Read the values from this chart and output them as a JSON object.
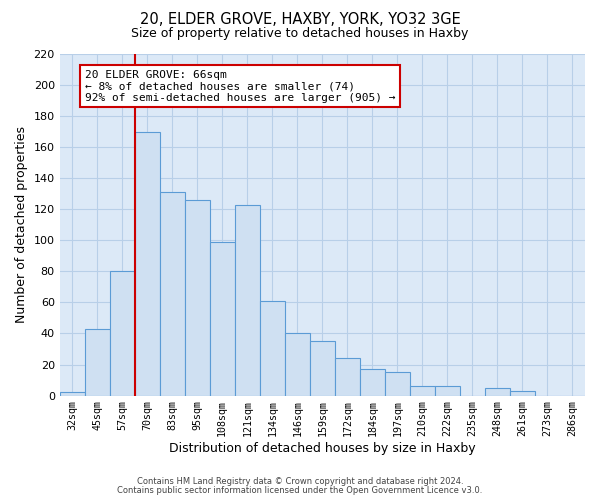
{
  "title1": "20, ELDER GROVE, HAXBY, YORK, YO32 3GE",
  "title2": "Size of property relative to detached houses in Haxby",
  "xlabel": "Distribution of detached houses by size in Haxby",
  "ylabel": "Number of detached properties",
  "bin_labels": [
    "32sqm",
    "45sqm",
    "57sqm",
    "70sqm",
    "83sqm",
    "95sqm",
    "108sqm",
    "121sqm",
    "134sqm",
    "146sqm",
    "159sqm",
    "172sqm",
    "184sqm",
    "197sqm",
    "210sqm",
    "222sqm",
    "235sqm",
    "248sqm",
    "261sqm",
    "273sqm",
    "286sqm"
  ],
  "bar_heights": [
    2,
    43,
    80,
    170,
    131,
    126,
    99,
    123,
    61,
    40,
    35,
    24,
    17,
    15,
    6,
    6,
    0,
    5,
    3,
    0,
    0
  ],
  "bar_color": "#cfe0f2",
  "bar_edge_color": "#5b9bd5",
  "vline_color": "#cc0000",
  "vline_bin_idx": 3,
  "ylim": [
    0,
    220
  ],
  "yticks": [
    0,
    20,
    40,
    60,
    80,
    100,
    120,
    140,
    160,
    180,
    200,
    220
  ],
  "annotation_title": "20 ELDER GROVE: 66sqm",
  "annotation_line1": "← 8% of detached houses are smaller (74)",
  "annotation_line2": "92% of semi-detached houses are larger (905) →",
  "annotation_box_color": "#ffffff",
  "annotation_box_edge": "#cc0000",
  "footer1": "Contains HM Land Registry data © Crown copyright and database right 2024.",
  "footer2": "Contains public sector information licensed under the Open Government Licence v3.0.",
  "background_color": "#ffffff",
  "plot_bg_color": "#dce9f7",
  "grid_color": "#b8cfe8"
}
